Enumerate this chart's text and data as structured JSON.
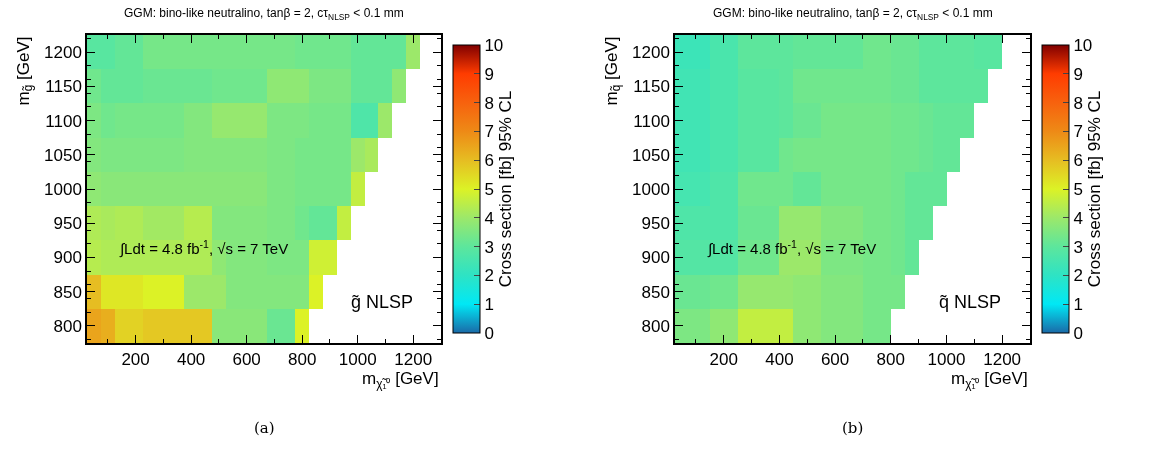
{
  "chart_data": [
    {
      "type": "heatmap",
      "title": "GGM: bino-like neutralino, tanβ = 2, cτ$_{NLSP}$ < 0.1 mm",
      "xlabel": "m$_{χ̃₁⁰}$ [GeV]",
      "ylabel": "m$_{g̃}$ [GeV]",
      "clabel": "Cross section [fb] 95% CL",
      "x": [
        50,
        100,
        150,
        200,
        250,
        300,
        350,
        400,
        450,
        500,
        550,
        600,
        650,
        700,
        750,
        800,
        850,
        900,
        950,
        1000,
        1050,
        1100,
        1150,
        1200,
        1250
      ],
      "xlim": [
        25,
        1300
      ],
      "xticks": [
        200,
        400,
        600,
        800,
        1000,
        1200
      ],
      "ylim": [
        775,
        1225
      ],
      "yticks": [
        800,
        850,
        900,
        950,
        1000,
        1050,
        1100,
        1150,
        1200
      ],
      "clim": [
        0,
        10
      ],
      "cticks": [
        0,
        1,
        2,
        3,
        4,
        5,
        6,
        7,
        8,
        9,
        10
      ],
      "cells": [
        [
          2.9,
          2.9,
          3.1,
          3.1,
          3.4,
          3.4,
          3.4,
          3.4,
          3.4,
          3.4,
          3.4,
          3.4,
          3.4,
          3.4,
          3.4,
          3.3,
          3.3,
          3.3,
          3.3,
          3.1,
          3.1,
          3.1,
          3.1,
          4.0,
          null
        ],
        [
          3.3,
          3.1,
          3.1,
          3.1,
          3.2,
          3.2,
          3.2,
          3.2,
          3.2,
          3.3,
          3.3,
          3.3,
          3.3,
          3.8,
          3.8,
          3.8,
          3.5,
          3.5,
          3.5,
          3.1,
          3.1,
          3.1,
          3.8,
          null,
          null
        ],
        [
          3.5,
          3.3,
          3.4,
          3.4,
          3.4,
          3.4,
          3.4,
          3.6,
          3.6,
          3.9,
          3.9,
          3.9,
          3.9,
          3.5,
          3.5,
          3.5,
          3.4,
          3.4,
          3.4,
          2.7,
          2.7,
          4.0,
          null,
          null,
          null
        ],
        [
          3.6,
          3.5,
          3.5,
          3.5,
          3.5,
          3.5,
          3.5,
          3.6,
          3.6,
          3.6,
          3.6,
          3.6,
          3.6,
          3.5,
          3.5,
          3.4,
          3.4,
          3.4,
          3.4,
          4.0,
          4.2,
          null,
          null,
          null,
          null
        ],
        [
          3.8,
          3.7,
          3.7,
          3.7,
          3.7,
          3.7,
          3.7,
          3.7,
          3.7,
          3.7,
          3.7,
          3.7,
          3.7,
          3.5,
          3.5,
          3.4,
          3.4,
          3.4,
          3.4,
          4.6,
          null,
          null,
          null,
          null,
          null
        ],
        [
          4.3,
          4.2,
          4.3,
          4.3,
          4.1,
          4.1,
          4.1,
          4.4,
          4.4,
          3.6,
          3.6,
          3.6,
          3.6,
          3.5,
          3.5,
          3.3,
          3.1,
          3.1,
          4.6,
          null,
          null,
          null,
          null,
          null,
          null
        ],
        [
          4.4,
          4.3,
          4.3,
          4.3,
          4.3,
          4.3,
          4.3,
          4.3,
          4.3,
          3.8,
          3.6,
          3.6,
          3.6,
          3.5,
          3.5,
          3.5,
          4.8,
          4.8,
          null,
          null,
          null,
          null,
          null,
          null,
          null
        ],
        [
          6.0,
          5.2,
          5.2,
          5.2,
          5.0,
          5.0,
          5.0,
          4.0,
          4.0,
          4.0,
          3.6,
          3.6,
          3.6,
          3.6,
          3.6,
          3.6,
          5.0,
          null,
          null,
          null,
          null,
          null,
          null,
          null,
          null
        ],
        [
          6.5,
          6.3,
          5.6,
          5.6,
          5.8,
          5.8,
          5.8,
          5.8,
          5.8,
          3.7,
          3.7,
          3.7,
          3.7,
          3.2,
          3.2,
          5.0,
          null,
          null,
          null,
          null,
          null,
          null,
          null,
          null,
          null
        ]
      ],
      "annotations": [
        "∫Ldt = 4.8 fb$^{-1}$, √s = 7 TeV",
        "g̃ NLSP",
        "(a)"
      ]
    },
    {
      "type": "heatmap",
      "title": "GGM: bino-like neutralino, tanβ = 2, cτ$_{NLSP}$ < 0.1 mm",
      "xlabel": "m$_{χ̃₁⁰}$ [GeV]",
      "ylabel": "m$_{q̃}$ [GeV]",
      "clabel": "Cross section [fb] 95% CL",
      "x": [
        25,
        75,
        125,
        175,
        225,
        275,
        325,
        375,
        425,
        475,
        525,
        575,
        625,
        675,
        725,
        775,
        825,
        875,
        925,
        975,
        1025,
        1075,
        1125,
        1175,
        1225,
        1275
      ],
      "xlim": [
        25,
        1300
      ],
      "xticks": [
        200,
        400,
        600,
        800,
        1000,
        1200
      ],
      "ylim": [
        775,
        1225
      ],
      "yticks": [
        800,
        850,
        900,
        950,
        1000,
        1050,
        1100,
        1150,
        1200
      ],
      "clim": [
        0,
        10
      ],
      "cticks": [
        0,
        1,
        2,
        3,
        4,
        5,
        6,
        7,
        8,
        9,
        10
      ],
      "cells": [
        [
          2.3,
          2.3,
          2.3,
          2.6,
          2.6,
          3.0,
          3.0,
          3.0,
          3.0,
          3.1,
          3.1,
          3.1,
          3.1,
          3.1,
          3.3,
          3.3,
          3.2,
          3.2,
          3.0,
          3.0,
          3.0,
          3.0,
          2.9,
          2.9,
          null,
          null
        ],
        [
          2.4,
          2.4,
          2.4,
          2.6,
          2.6,
          2.9,
          2.9,
          2.9,
          3.0,
          3.3,
          3.3,
          3.3,
          3.3,
          3.3,
          3.3,
          3.3,
          3.2,
          3.2,
          3.0,
          3.0,
          3.0,
          3.0,
          3.0,
          null,
          null,
          null
        ],
        [
          2.4,
          2.4,
          2.4,
          2.6,
          2.6,
          2.9,
          2.9,
          2.9,
          3.0,
          3.2,
          3.2,
          3.4,
          3.4,
          3.4,
          3.4,
          3.4,
          3.3,
          3.3,
          3.2,
          3.1,
          3.1,
          3.1,
          null,
          null,
          null,
          null
        ],
        [
          2.4,
          2.4,
          2.4,
          2.6,
          2.6,
          2.9,
          2.9,
          2.9,
          3.3,
          3.4,
          3.4,
          3.4,
          3.4,
          3.4,
          3.4,
          3.4,
          3.3,
          3.3,
          3.2,
          3.1,
          3.1,
          null,
          null,
          null,
          null,
          null
        ],
        [
          2.5,
          2.5,
          2.5,
          2.7,
          2.7,
          3.3,
          3.3,
          3.3,
          3.3,
          3.1,
          3.1,
          3.4,
          3.4,
          3.4,
          3.4,
          3.4,
          3.3,
          3.1,
          3.1,
          3.1,
          null,
          null,
          null,
          null,
          null,
          null
        ],
        [
          2.7,
          2.7,
          2.7,
          2.7,
          2.7,
          3.2,
          3.2,
          3.2,
          3.9,
          3.9,
          3.9,
          3.6,
          3.6,
          3.6,
          3.4,
          3.4,
          3.3,
          3.1,
          3.1,
          null,
          null,
          null,
          null,
          null,
          null,
          null
        ],
        [
          2.8,
          2.8,
          2.8,
          2.8,
          2.8,
          3.3,
          3.3,
          3.3,
          4.0,
          4.0,
          4.0,
          3.5,
          3.5,
          3.5,
          3.4,
          3.4,
          3.3,
          3.1,
          null,
          null,
          null,
          null,
          null,
          null,
          null,
          null
        ],
        [
          3.2,
          3.2,
          3.2,
          3.3,
          3.3,
          3.9,
          3.9,
          3.9,
          3.9,
          3.8,
          3.8,
          3.6,
          3.6,
          3.6,
          3.4,
          3.4,
          3.4,
          null,
          null,
          null,
          null,
          null,
          null,
          null,
          null,
          null
        ],
        [
          3.5,
          3.5,
          3.5,
          3.8,
          3.8,
          4.6,
          4.6,
          4.6,
          4.6,
          3.8,
          3.8,
          3.6,
          3.6,
          3.6,
          3.4,
          3.4,
          null,
          null,
          null,
          null,
          null,
          null,
          null,
          null,
          null,
          null
        ]
      ],
      "annotations": [
        "∫Ldt = 4.8 fb$^{-1}$, √s = 7 TeV",
        "q̃ NLSP",
        "(b)"
      ]
    }
  ]
}
